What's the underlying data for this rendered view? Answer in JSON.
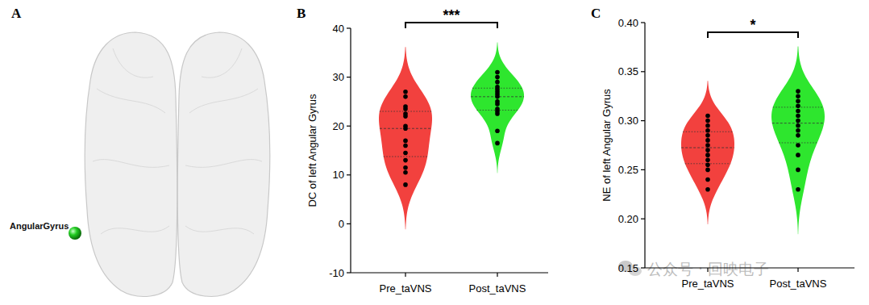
{
  "panel_a": {
    "panel_label": "A",
    "region_label": "AngularGyrus",
    "color": "#22cc22"
  },
  "watermark": "公众号 · 回映电子",
  "chart_data": [
    {
      "type": "violin",
      "panel_label": "B",
      "ylabel": "DC of left Angular Gyrus",
      "categories": [
        "Pre_taVNS",
        "Post_taVNS"
      ],
      "colors": [
        "#f2413e",
        "#2ee62e"
      ],
      "values": [
        [
          27,
          26,
          24,
          23.5,
          22.5,
          22,
          20,
          19.5,
          17,
          16,
          14.5,
          13,
          11.5,
          10.5,
          8
        ],
        [
          31,
          30,
          29,
          28,
          27.5,
          27,
          26.5,
          26,
          25,
          24.5,
          23.5,
          23,
          22.5,
          19,
          16.5
        ]
      ],
      "ylim": [
        -10,
        40
      ],
      "yticks": [
        -10,
        0,
        10,
        20,
        30,
        40
      ],
      "annotations": [
        {
          "text": "***"
        }
      ]
    },
    {
      "type": "violin",
      "panel_label": "C",
      "ylabel": "NE of left Angular Gyrus",
      "categories": [
        "Pre_taVNS",
        "Post_taVNS"
      ],
      "colors": [
        "#f2413e",
        "#2ee62e"
      ],
      "values": [
        [
          0.305,
          0.3,
          0.295,
          0.29,
          0.285,
          0.28,
          0.275,
          0.27,
          0.265,
          0.26,
          0.255,
          0.25,
          0.24,
          0.23
        ],
        [
          0.33,
          0.325,
          0.32,
          0.315,
          0.31,
          0.305,
          0.3,
          0.295,
          0.29,
          0.285,
          0.275,
          0.265,
          0.25,
          0.23
        ]
      ],
      "ylim": [
        0.15,
        0.4
      ],
      "yticks": [
        0.15,
        {
          "value": 0.2,
          "label": "0.20"
        },
        0.25,
        {
          "value": 0.3,
          "label": "0.30"
        },
        0.35,
        {
          "value": 0.4,
          "label": "0.40"
        }
      ],
      "annotations": [
        {
          "text": "*"
        }
      ]
    }
  ]
}
